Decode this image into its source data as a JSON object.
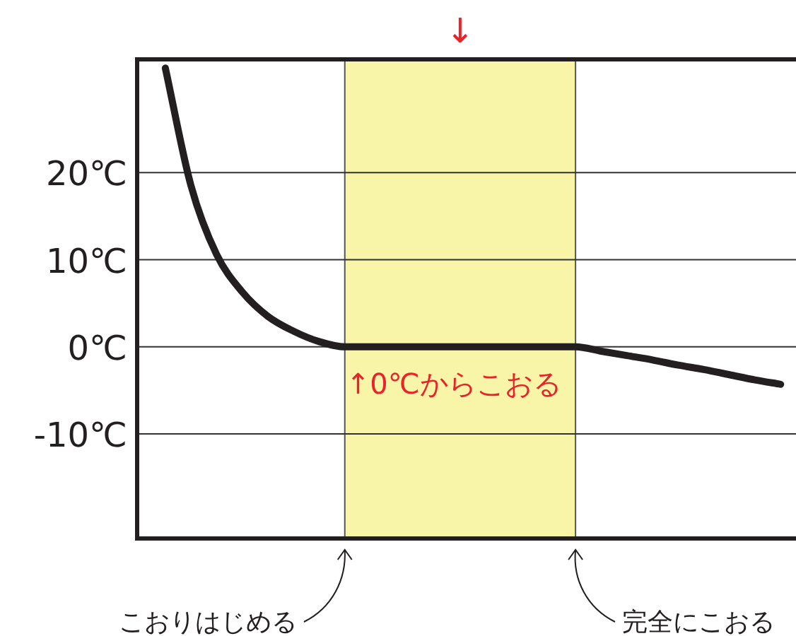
{
  "chart_data": {
    "type": "line",
    "categories": [
      null,
      null,
      null,
      null,
      null,
      null,
      null,
      null,
      null,
      null,
      null,
      null,
      null,
      null,
      null,
      null,
      null,
      null,
      null,
      null,
      null,
      null,
      null,
      null,
      null
    ],
    "series": [
      {
        "color": "#231f20",
        "values": [
          32,
          18.5,
          10.6,
          6.3,
          3.5,
          1.8,
          0.6,
          0,
          0,
          0,
          0,
          0,
          0,
          0,
          0,
          0,
          0,
          -0.5,
          -1.0,
          -1.5,
          -2.1,
          -2.6,
          -3.2,
          -3.8,
          -4.3
        ]
      }
    ],
    "ylim": [
      -22,
      33
    ],
    "yticks": [
      {
        "value": -10,
        "label": "-10℃"
      },
      {
        "value": 0,
        "label": "0℃"
      },
      {
        "value": 10,
        "label": "10℃"
      },
      {
        "value": 20,
        "label": "20℃"
      }
    ],
    "grid": "y",
    "tick_labels": "y",
    "annotations": [
      "↓",
      "↑0℃からこおる",
      "こおりはじめる",
      "完全にこおる"
    ]
  }
}
